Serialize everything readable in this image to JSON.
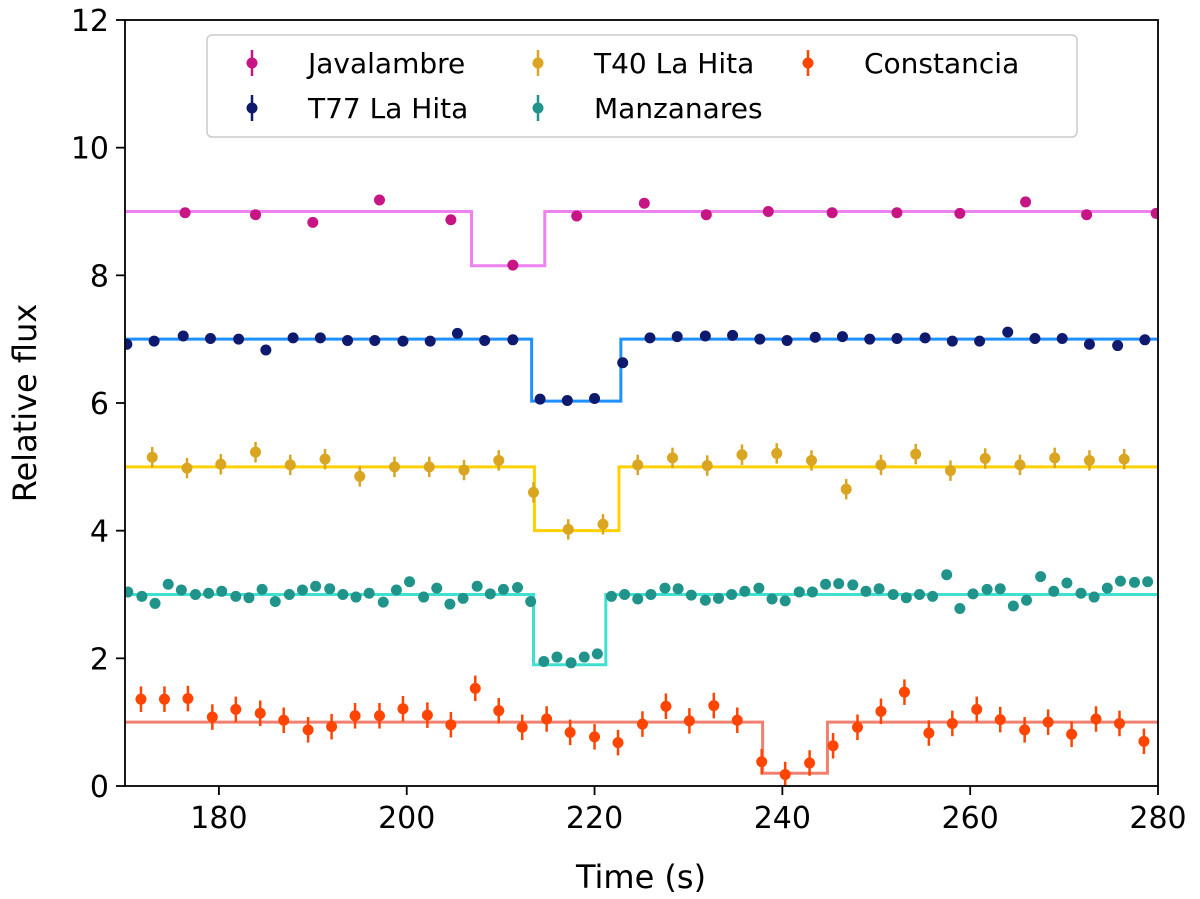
{
  "chart_data": {
    "type": "scatter",
    "xlabel": "Time (s)",
    "ylabel": "Relative flux",
    "xlim": [
      170,
      280
    ],
    "ylim": [
      0,
      12
    ],
    "xticks": [
      180,
      200,
      220,
      240,
      260,
      280
    ],
    "yticks": [
      0,
      2,
      4,
      6,
      8,
      10,
      12
    ],
    "legend_position": "top-center",
    "series": [
      {
        "name": "Javalambre",
        "point_color": "#c71585",
        "model_color": "#ee82ee",
        "yerr": 0.06,
        "x": [
          176.4,
          183.9,
          190.0,
          197.1,
          204.7,
          211.3,
          218.1,
          225.3,
          231.9,
          238.5,
          245.3,
          252.2,
          258.9,
          265.9,
          272.4,
          279.8
        ],
        "y": [
          8.98,
          8.95,
          8.83,
          9.18,
          8.87,
          8.16,
          8.93,
          9.13,
          8.95,
          9.0,
          8.98,
          8.98,
          8.97,
          9.15,
          8.95,
          8.97
        ],
        "model": {
          "baseline": 9.0,
          "depth_level": 8.15,
          "ingress": 206.9,
          "egress": 214.7
        }
      },
      {
        "name": "T77 La Hita",
        "point_color": "#0d1a6e",
        "model_color": "#1e90ff",
        "yerr": 0.06,
        "x": [
          170.2,
          173.1,
          176.2,
          179.1,
          182.1,
          185.0,
          187.9,
          190.8,
          193.7,
          196.6,
          199.6,
          202.5,
          205.4,
          208.3,
          211.3,
          214.2,
          217.1,
          220.0,
          223.0,
          225.9,
          228.8,
          231.8,
          234.7,
          237.6,
          240.5,
          243.5,
          246.4,
          249.3,
          252.2,
          255.2,
          258.1,
          261.0,
          264.0,
          266.9,
          269.8,
          272.7,
          275.7,
          278.6
        ],
        "y": [
          6.92,
          6.97,
          7.05,
          7.01,
          7.0,
          6.83,
          7.02,
          7.02,
          6.98,
          6.98,
          6.97,
          6.97,
          7.09,
          6.98,
          6.99,
          6.06,
          6.04,
          6.07,
          6.63,
          7.02,
          7.04,
          7.05,
          7.06,
          7.0,
          6.98,
          7.03,
          7.04,
          7.0,
          7.01,
          7.02,
          6.97,
          6.97,
          7.11,
          7.01,
          7.01,
          6.92,
          6.9,
          6.99
        ],
        "model": {
          "baseline": 7.0,
          "depth_level": 6.03,
          "ingress": 213.3,
          "egress": 222.8
        }
      },
      {
        "name": "T40 La Hita",
        "point_color": "#daa520",
        "model_color": "#ffd000",
        "yerr": 0.16,
        "x": [
          172.9,
          176.6,
          180.2,
          183.9,
          187.6,
          191.3,
          195.0,
          198.7,
          202.4,
          206.1,
          209.8,
          213.5,
          217.2,
          220.9,
          224.6,
          228.3,
          232.0,
          235.7,
          239.4,
          243.1,
          246.8,
          250.5,
          254.2,
          257.9,
          261.6,
          265.3,
          269.0,
          272.7,
          276.4
        ],
        "y": [
          5.15,
          4.98,
          5.04,
          5.23,
          5.03,
          5.12,
          4.85,
          5.0,
          5.0,
          4.95,
          5.1,
          4.6,
          4.02,
          4.1,
          5.03,
          5.14,
          5.02,
          5.19,
          5.21,
          5.1,
          4.65,
          5.03,
          5.2,
          4.94,
          5.13,
          5.03,
          5.14,
          5.1,
          5.12
        ],
        "model": {
          "baseline": 5.0,
          "depth_level": 4.0,
          "ingress": 213.6,
          "egress": 222.6
        }
      },
      {
        "name": "Manzanares",
        "point_color": "#20948b",
        "model_color": "#40e0d0",
        "yerr": 0.08,
        "x": [
          170.3,
          171.8,
          173.2,
          174.6,
          176.0,
          177.5,
          178.9,
          180.3,
          181.8,
          183.2,
          184.6,
          186.0,
          187.5,
          188.9,
          190.3,
          191.8,
          193.2,
          194.6,
          196.0,
          197.5,
          198.9,
          200.3,
          201.8,
          203.2,
          204.6,
          206.0,
          207.5,
          208.9,
          210.3,
          211.8,
          213.2,
          214.6,
          216.0,
          217.5,
          218.9,
          220.3,
          221.8,
          223.2,
          224.6,
          226.0,
          227.5,
          228.9,
          230.3,
          231.8,
          233.2,
          234.6,
          236.0,
          237.5,
          238.9,
          240.3,
          241.8,
          243.2,
          244.6,
          246.0,
          247.5,
          248.9,
          250.3,
          251.8,
          253.2,
          254.6,
          256.0,
          257.5,
          258.9,
          260.3,
          261.8,
          263.2,
          264.6,
          266.0,
          267.5,
          268.9,
          270.3,
          271.8,
          273.2,
          274.6,
          276.0,
          277.5,
          278.9
        ],
        "y": [
          3.04,
          2.97,
          2.86,
          3.16,
          3.07,
          3.0,
          3.02,
          3.05,
          2.97,
          2.95,
          3.08,
          2.89,
          3.0,
          3.07,
          3.13,
          3.09,
          3.0,
          2.96,
          3.02,
          2.88,
          3.07,
          3.2,
          2.96,
          3.1,
          2.85,
          2.94,
          3.13,
          3.01,
          3.08,
          3.11,
          2.89,
          1.95,
          2.02,
          1.93,
          2.02,
          2.07,
          2.97,
          3.0,
          2.93,
          3.0,
          3.1,
          3.09,
          2.99,
          2.91,
          2.94,
          3.0,
          3.05,
          3.1,
          2.93,
          2.9,
          3.04,
          3.04,
          3.16,
          3.17,
          3.15,
          3.05,
          3.09,
          3.0,
          2.95,
          3.0,
          2.97,
          3.31,
          2.78,
          3.01,
          3.08,
          3.09,
          2.82,
          2.91,
          3.28,
          3.05,
          3.18,
          3.02,
          2.96,
          3.1,
          3.21,
          3.19,
          3.2
        ],
        "model": {
          "baseline": 3.0,
          "depth_level": 1.9,
          "ingress": 213.5,
          "egress": 221.2
        }
      },
      {
        "name": "Constancia",
        "point_color": "#ff4500",
        "model_color": "#f08070",
        "yerr": 0.2,
        "x": [
          171.7,
          174.2,
          176.7,
          179.3,
          181.8,
          184.4,
          186.9,
          189.5,
          192.0,
          194.5,
          197.1,
          199.6,
          202.2,
          204.7,
          207.3,
          209.8,
          212.3,
          214.9,
          217.4,
          220.0,
          222.5,
          225.1,
          227.6,
          230.1,
          232.7,
          235.2,
          237.8,
          240.3,
          242.9,
          245.4,
          248.0,
          250.5,
          253.0,
          255.6,
          258.1,
          260.7,
          263.2,
          265.8,
          268.3,
          270.8,
          273.4,
          275.9,
          278.5
        ],
        "y": [
          1.36,
          1.36,
          1.37,
          1.08,
          1.2,
          1.14,
          1.03,
          0.88,
          0.93,
          1.1,
          1.1,
          1.21,
          1.11,
          0.96,
          1.53,
          1.18,
          0.92,
          1.05,
          0.84,
          0.77,
          0.68,
          0.97,
          1.25,
          1.02,
          1.26,
          1.03,
          0.38,
          0.18,
          0.36,
          0.63,
          0.92,
          1.17,
          1.47,
          0.83,
          0.98,
          1.2,
          1.04,
          0.88,
          1.0,
          0.81,
          1.05,
          0.98,
          0.7
        ],
        "model": {
          "baseline": 1.0,
          "depth_level": 0.2,
          "ingress": 237.9,
          "egress": 244.8
        }
      }
    ],
    "legend_layout": [
      [
        "Javalambre",
        "T40 La Hita",
        "Constancia"
      ],
      [
        "T77 La Hita",
        "Manzanares"
      ]
    ]
  }
}
